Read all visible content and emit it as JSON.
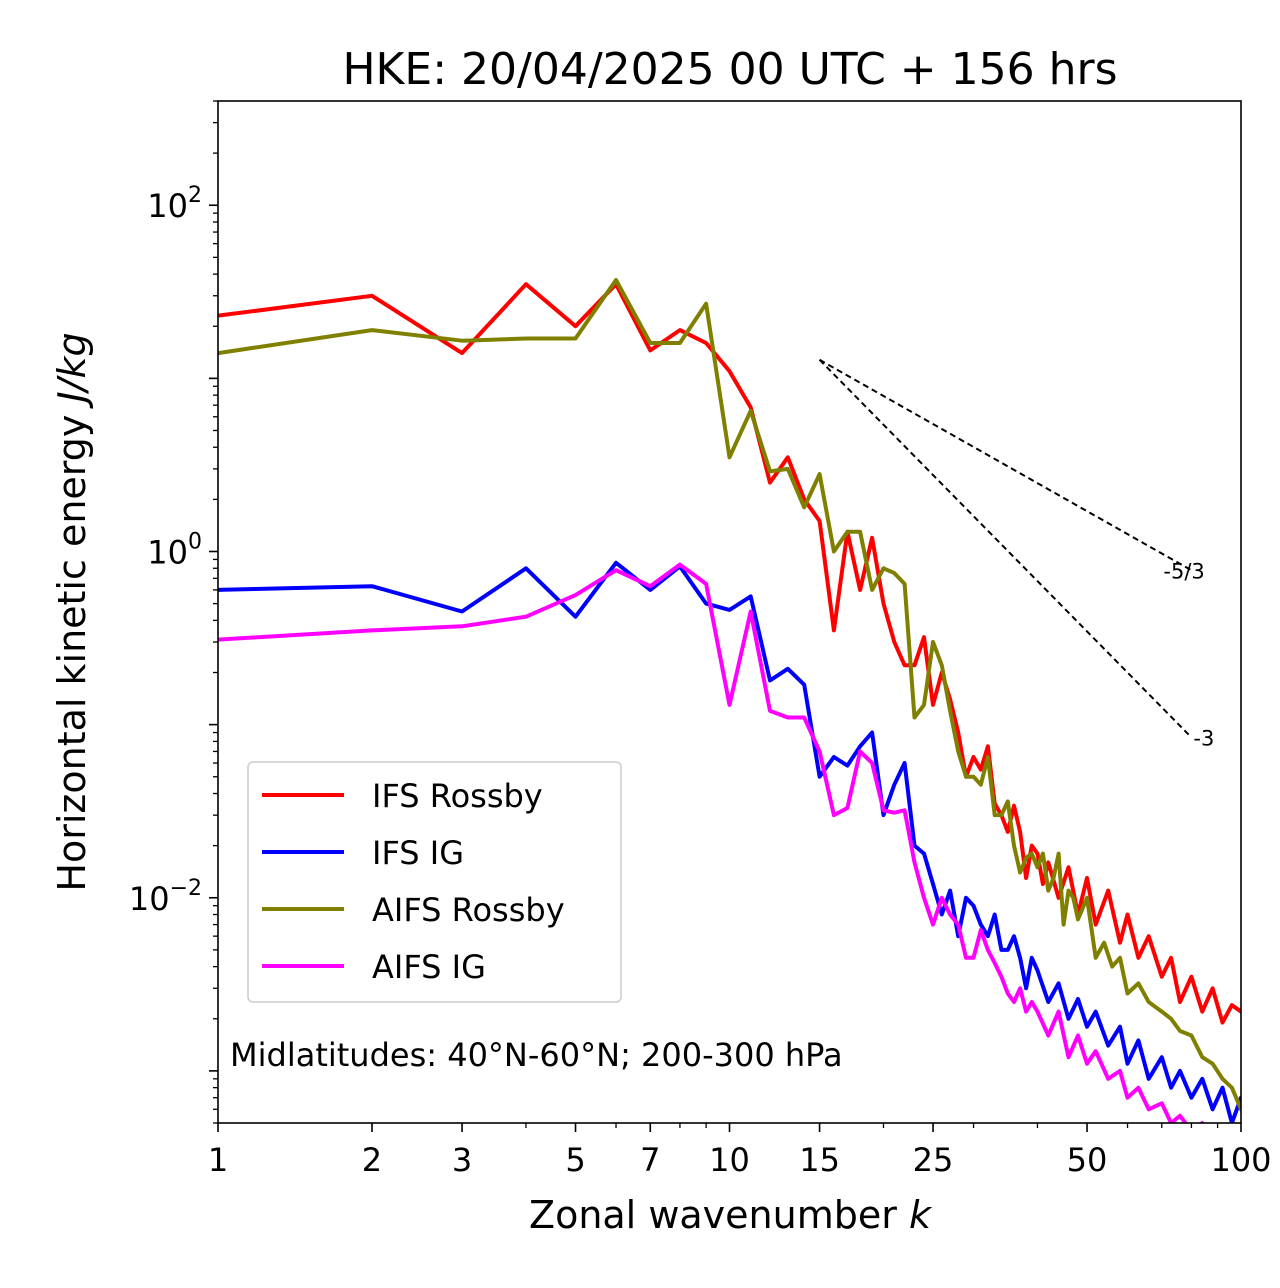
{
  "chart_data": {
    "type": "line",
    "title": "HKE: 20/04/2025 00 UTC + 156 hrs",
    "xlabel": "Zonal wavenumber k",
    "ylabel": "Horizontal kinetic energy J/kg",
    "xscale": "log",
    "yscale": "log",
    "xlim": [
      1,
      100
    ],
    "ylim": [
      0.0005,
      400
    ],
    "x_ticks": [
      {
        "value": 1,
        "label": "1"
      },
      {
        "value": 2,
        "label": "2"
      },
      {
        "value": 3,
        "label": "3"
      },
      {
        "value": 5,
        "label": "5"
      },
      {
        "value": 7,
        "label": "7"
      },
      {
        "value": 10,
        "label": "10"
      },
      {
        "value": 15,
        "label": "15"
      },
      {
        "value": 25,
        "label": "25"
      },
      {
        "value": 50,
        "label": "50"
      },
      {
        "value": 100,
        "label": "100"
      }
    ],
    "y_ticks": [
      {
        "value": 100,
        "base": "10",
        "exp": "2"
      },
      {
        "value": 1,
        "base": "10",
        "exp": "0"
      },
      {
        "value": 0.01,
        "base": "10",
        "exp": "−2"
      }
    ],
    "grid": false,
    "legend_position": "lower-left",
    "annotation": "Midlatitudes: 40°N-60°N; 200-300 hPa",
    "reference_lines": [
      {
        "label": "-5/3",
        "slope": -1.6667,
        "x": [
          15,
          80
        ],
        "y": [
          12.8,
          0.779
        ]
      },
      {
        "label": "-3",
        "slope": -3,
        "x": [
          15,
          80
        ],
        "y": [
          12.8,
          0.0843
        ]
      }
    ],
    "series": [
      {
        "name": "IFS Rossby",
        "color": "#ff0000",
        "points": [
          [
            1,
            23
          ],
          [
            2,
            30
          ],
          [
            3,
            14
          ],
          [
            4,
            35
          ],
          [
            5,
            20
          ],
          [
            6,
            35
          ],
          [
            7,
            14.5
          ],
          [
            8,
            19
          ],
          [
            9,
            16
          ],
          [
            10,
            11
          ],
          [
            11,
            6.8
          ],
          [
            12,
            2.5
          ],
          [
            13,
            3.5
          ],
          [
            14,
            2.0
          ],
          [
            15,
            1.5
          ],
          [
            16,
            0.35
          ],
          [
            17,
            1.3
          ],
          [
            18,
            0.6
          ],
          [
            19,
            1.2
          ],
          [
            20,
            0.5
          ],
          [
            21,
            0.3
          ],
          [
            22,
            0.22
          ],
          [
            23,
            0.22
          ],
          [
            24,
            0.32
          ],
          [
            25,
            0.13
          ],
          [
            26,
            0.2
          ],
          [
            27,
            0.14
          ],
          [
            28,
            0.09
          ],
          [
            29,
            0.05
          ],
          [
            30,
            0.065
          ],
          [
            31,
            0.055
          ],
          [
            32,
            0.075
          ],
          [
            33,
            0.035
          ],
          [
            34,
            0.03
          ],
          [
            35,
            0.024
          ],
          [
            36,
            0.034
          ],
          [
            37,
            0.024
          ],
          [
            38,
            0.013
          ],
          [
            39,
            0.02
          ],
          [
            40,
            0.018
          ],
          [
            41,
            0.012
          ],
          [
            42,
            0.016
          ],
          [
            44,
            0.01
          ],
          [
            46,
            0.015
          ],
          [
            48,
            0.008
          ],
          [
            50,
            0.013
          ],
          [
            52,
            0.007
          ],
          [
            55,
            0.011
          ],
          [
            58,
            0.0055
          ],
          [
            60,
            0.008
          ],
          [
            63,
            0.0045
          ],
          [
            66,
            0.006
          ],
          [
            70,
            0.0035
          ],
          [
            73,
            0.0045
          ],
          [
            76,
            0.0025
          ],
          [
            80,
            0.0035
          ],
          [
            84,
            0.0022
          ],
          [
            88,
            0.003
          ],
          [
            92,
            0.0019
          ],
          [
            96,
            0.0024
          ],
          [
            100,
            0.0022
          ]
        ]
      },
      {
        "name": "IFS IG",
        "color": "#0000ff",
        "points": [
          [
            1,
            0.6
          ],
          [
            2,
            0.63
          ],
          [
            3,
            0.45
          ],
          [
            4,
            0.8
          ],
          [
            5,
            0.42
          ],
          [
            6,
            0.86
          ],
          [
            7,
            0.6
          ],
          [
            8,
            0.82
          ],
          [
            9,
            0.5
          ],
          [
            10,
            0.46
          ],
          [
            11,
            0.55
          ],
          [
            12,
            0.18
          ],
          [
            13,
            0.21
          ],
          [
            14,
            0.17
          ],
          [
            15,
            0.05
          ],
          [
            16,
            0.065
          ],
          [
            17,
            0.058
          ],
          [
            18,
            0.075
          ],
          [
            19,
            0.09
          ],
          [
            20,
            0.03
          ],
          [
            21,
            0.045
          ],
          [
            22,
            0.06
          ],
          [
            23,
            0.02
          ],
          [
            24,
            0.018
          ],
          [
            25,
            0.012
          ],
          [
            26,
            0.008
          ],
          [
            27,
            0.011
          ],
          [
            28,
            0.006
          ],
          [
            29,
            0.01
          ],
          [
            30,
            0.009
          ],
          [
            31,
            0.007
          ],
          [
            32,
            0.006
          ],
          [
            33,
            0.008
          ],
          [
            34,
            0.005
          ],
          [
            35,
            0.005
          ],
          [
            36,
            0.006
          ],
          [
            37,
            0.0045
          ],
          [
            38,
            0.003
          ],
          [
            39,
            0.0045
          ],
          [
            40,
            0.0038
          ],
          [
            42,
            0.0025
          ],
          [
            44,
            0.0032
          ],
          [
            46,
            0.002
          ],
          [
            48,
            0.0026
          ],
          [
            50,
            0.0018
          ],
          [
            52,
            0.0022
          ],
          [
            55,
            0.0014
          ],
          [
            58,
            0.0018
          ],
          [
            60,
            0.0011
          ],
          [
            63,
            0.0015
          ],
          [
            66,
            0.0009
          ],
          [
            70,
            0.0012
          ],
          [
            73,
            0.0008
          ],
          [
            76,
            0.001
          ],
          [
            80,
            0.0007
          ],
          [
            84,
            0.0009
          ],
          [
            88,
            0.0006
          ],
          [
            92,
            0.0008
          ],
          [
            96,
            0.0005
          ],
          [
            100,
            0.0007
          ]
        ]
      },
      {
        "name": "AIFS Rossby",
        "color": "#808000",
        "points": [
          [
            1,
            14
          ],
          [
            2,
            19
          ],
          [
            3,
            16.5
          ],
          [
            4,
            17
          ],
          [
            5,
            17
          ],
          [
            6,
            37
          ],
          [
            7,
            16
          ],
          [
            8,
            16
          ],
          [
            9,
            27
          ],
          [
            10,
            3.5
          ],
          [
            11,
            6.5
          ],
          [
            12,
            2.9
          ],
          [
            13,
            3.0
          ],
          [
            14,
            1.8
          ],
          [
            15,
            2.8
          ],
          [
            16,
            1.0
          ],
          [
            17,
            1.3
          ],
          [
            18,
            1.3
          ],
          [
            19,
            0.6
          ],
          [
            20,
            0.8
          ],
          [
            21,
            0.75
          ],
          [
            22,
            0.65
          ],
          [
            23,
            0.11
          ],
          [
            24,
            0.13
          ],
          [
            25,
            0.3
          ],
          [
            26,
            0.22
          ],
          [
            27,
            0.12
          ],
          [
            28,
            0.07
          ],
          [
            29,
            0.05
          ],
          [
            30,
            0.05
          ],
          [
            31,
            0.045
          ],
          [
            32,
            0.065
          ],
          [
            33,
            0.03
          ],
          [
            34,
            0.03
          ],
          [
            35,
            0.036
          ],
          [
            36,
            0.02
          ],
          [
            37,
            0.014
          ],
          [
            38,
            0.017
          ],
          [
            39,
            0.018
          ],
          [
            40,
            0.015
          ],
          [
            41,
            0.018
          ],
          [
            42,
            0.011
          ],
          [
            43,
            0.013
          ],
          [
            44,
            0.018
          ],
          [
            45,
            0.007
          ],
          [
            46,
            0.011
          ],
          [
            47,
            0.01
          ],
          [
            48,
            0.0075
          ],
          [
            50,
            0.01
          ],
          [
            52,
            0.0045
          ],
          [
            54,
            0.0055
          ],
          [
            56,
            0.004
          ],
          [
            58,
            0.0045
          ],
          [
            60,
            0.0028
          ],
          [
            63,
            0.0032
          ],
          [
            66,
            0.0025
          ],
          [
            70,
            0.0022
          ],
          [
            73,
            0.002
          ],
          [
            76,
            0.0017
          ],
          [
            80,
            0.0016
          ],
          [
            84,
            0.0012
          ],
          [
            88,
            0.0011
          ],
          [
            92,
            0.0009
          ],
          [
            96,
            0.0008
          ],
          [
            100,
            0.0006
          ]
        ]
      },
      {
        "name": "AIFS IG",
        "color": "#ff00ff",
        "points": [
          [
            1,
            0.31
          ],
          [
            2,
            0.35
          ],
          [
            3,
            0.37
          ],
          [
            4,
            0.42
          ],
          [
            5,
            0.56
          ],
          [
            6,
            0.78
          ],
          [
            7,
            0.63
          ],
          [
            8,
            0.84
          ],
          [
            9,
            0.65
          ],
          [
            10,
            0.13
          ],
          [
            11,
            0.45
          ],
          [
            12,
            0.12
          ],
          [
            13,
            0.11
          ],
          [
            14,
            0.11
          ],
          [
            15,
            0.07
          ],
          [
            16,
            0.03
          ],
          [
            17,
            0.033
          ],
          [
            18,
            0.07
          ],
          [
            19,
            0.06
          ],
          [
            20,
            0.032
          ],
          [
            21,
            0.031
          ],
          [
            22,
            0.032
          ],
          [
            23,
            0.016
          ],
          [
            24,
            0.01
          ],
          [
            25,
            0.007
          ],
          [
            26,
            0.01
          ],
          [
            27,
            0.008
          ],
          [
            28,
            0.007
          ],
          [
            29,
            0.0045
          ],
          [
            30,
            0.0045
          ],
          [
            31,
            0.0065
          ],
          [
            32,
            0.005
          ],
          [
            33,
            0.0042
          ],
          [
            34,
            0.0035
          ],
          [
            35,
            0.0028
          ],
          [
            36,
            0.0025
          ],
          [
            37,
            0.003
          ],
          [
            38,
            0.0022
          ],
          [
            39,
            0.0025
          ],
          [
            40,
            0.0022
          ],
          [
            42,
            0.0016
          ],
          [
            44,
            0.0022
          ],
          [
            46,
            0.0012
          ],
          [
            48,
            0.0016
          ],
          [
            50,
            0.0011
          ],
          [
            52,
            0.0013
          ],
          [
            55,
            0.0009
          ],
          [
            58,
            0.001
          ],
          [
            60,
            0.0007
          ],
          [
            63,
            0.0008
          ],
          [
            66,
            0.0006
          ],
          [
            70,
            0.00065
          ],
          [
            73,
            0.0005
          ],
          [
            76,
            0.00055
          ],
          [
            80,
            0.00045
          ],
          [
            84,
            0.0005
          ],
          [
            88,
            0.0004
          ],
          [
            92,
            0.00045
          ],
          [
            96,
            0.00035
          ],
          [
            100,
            0.0004
          ]
        ]
      }
    ]
  }
}
